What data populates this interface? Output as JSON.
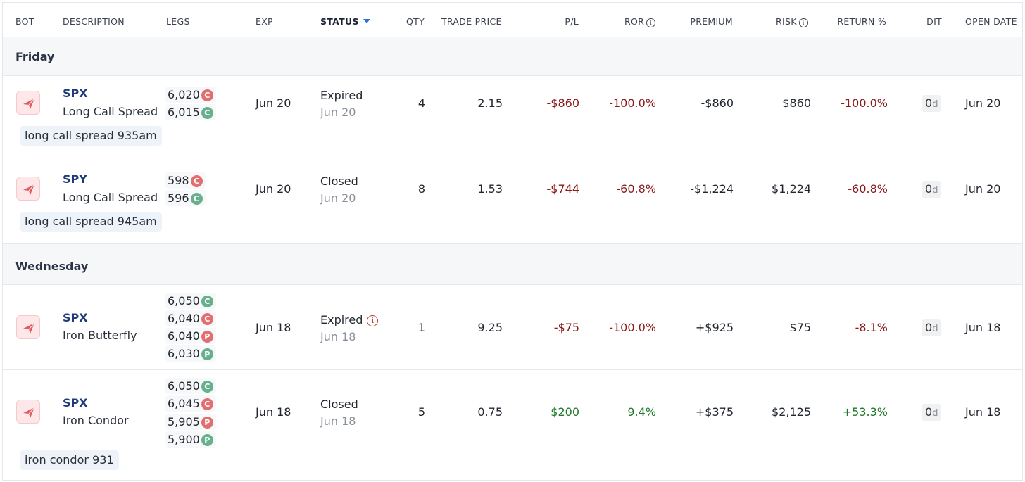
{
  "headers": {
    "bot": "BOT",
    "description": "DESCRIPTION",
    "legs": "LEGS",
    "exp": "EXP",
    "status": "STATUS",
    "qty": "QTY",
    "trade_price": "TRADE PRICE",
    "pl": "P/L",
    "ror": "ROR",
    "premium": "PREMIUM",
    "risk": "RISK",
    "return_pct": "RETURN %",
    "dit": "DIT",
    "open_date": "OPEN DATE"
  },
  "groups": [
    {
      "label": "Friday",
      "rows": [
        {
          "symbol": "SPX",
          "strategy": "Long Call Spread",
          "note": "long call spread 935am",
          "legs": [
            {
              "strike": "6,020",
              "type": "C",
              "color": "#e26f6f"
            },
            {
              "strike": "6,015",
              "type": "C",
              "color": "#66b08d"
            }
          ],
          "exp": "Jun 20",
          "status": "Expired",
          "status_date": "Jun 20",
          "qty": "4",
          "trade_price": "2.15",
          "pl": "-$860",
          "ror": "-100.0%",
          "premium": "-$860",
          "risk": "$860",
          "return_pct": "-100.0%",
          "dit_value": "0",
          "dit_unit": "d",
          "open_date": "Jun 20"
        },
        {
          "symbol": "SPY",
          "strategy": "Long Call Spread",
          "note": "long call spread 945am",
          "legs": [
            {
              "strike": "598",
              "type": "C",
              "color": "#e26f6f"
            },
            {
              "strike": "596",
              "type": "C",
              "color": "#66b08d"
            }
          ],
          "exp": "Jun 20",
          "status": "Closed",
          "status_date": "Jun 20",
          "qty": "8",
          "trade_price": "1.53",
          "pl": "-$744",
          "ror": "-60.8%",
          "premium": "-$1,224",
          "risk": "$1,224",
          "return_pct": "-60.8%",
          "dit_value": "0",
          "dit_unit": "d",
          "open_date": "Jun 20"
        }
      ]
    },
    {
      "label": "Wednesday",
      "rows": [
        {
          "symbol": "SPX",
          "strategy": "Iron Butterfly",
          "note": "",
          "legs": [
            {
              "strike": "6,050",
              "type": "C",
              "color": "#66b08d"
            },
            {
              "strike": "6,040",
              "type": "C",
              "color": "#e26f6f"
            },
            {
              "strike": "6,040",
              "type": "P",
              "color": "#e26f6f"
            },
            {
              "strike": "6,030",
              "type": "P",
              "color": "#66b08d"
            }
          ],
          "exp": "Jun 18",
          "status": "Expired",
          "status_date": "Jun 18",
          "qty": "1",
          "trade_price": "9.25",
          "pl": "-$75",
          "ror": "-100.0%",
          "premium": "+$925",
          "risk": "$75",
          "return_pct": "-8.1%",
          "dit_value": "0",
          "dit_unit": "d",
          "open_date": "Jun 18"
        },
        {
          "symbol": "SPX",
          "strategy": "Iron Condor",
          "note": "iron condor 931",
          "legs": [
            {
              "strike": "6,050",
              "type": "C",
              "color": "#66b08d"
            },
            {
              "strike": "6,045",
              "type": "C",
              "color": "#e26f6f"
            },
            {
              "strike": "5,905",
              "type": "P",
              "color": "#e26f6f"
            },
            {
              "strike": "5,900",
              "type": "P",
              "color": "#66b08d"
            }
          ],
          "exp": "Jun 18",
          "status": "Closed",
          "status_date": "Jun 18",
          "qty": "5",
          "trade_price": "0.75",
          "pl": "$200",
          "ror": "9.4%",
          "premium": "+$375",
          "risk": "$2,125",
          "return_pct": "+53.3%",
          "dit_value": "0",
          "dit_unit": "d",
          "open_date": "Jun 18"
        }
      ]
    }
  ]
}
